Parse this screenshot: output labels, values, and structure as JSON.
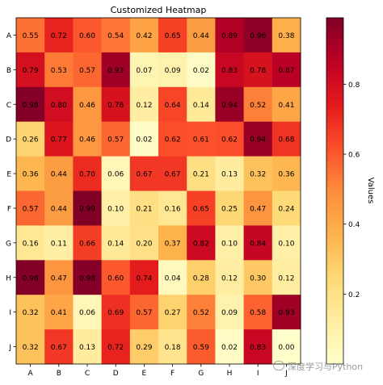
{
  "chart_data": {
    "type": "heatmap",
    "title": "Customized Heatmap",
    "xlabel": "",
    "ylabel": "",
    "x_categories": [
      "A",
      "B",
      "C",
      "D",
      "E",
      "F",
      "G",
      "H",
      "I",
      "J"
    ],
    "y_categories": [
      "A",
      "B",
      "C",
      "D",
      "E",
      "F",
      "G",
      "H",
      "I",
      "J"
    ],
    "values": [
      [
        0.55,
        0.72,
        0.6,
        0.54,
        0.42,
        0.65,
        0.44,
        0.89,
        0.96,
        0.38
      ],
      [
        0.79,
        0.53,
        0.57,
        0.93,
        0.07,
        0.09,
        0.02,
        0.83,
        0.78,
        0.87
      ],
      [
        0.98,
        0.8,
        0.46,
        0.78,
        0.12,
        0.64,
        0.14,
        0.94,
        0.52,
        0.41
      ],
      [
        0.26,
        0.77,
        0.46,
        0.57,
        0.02,
        0.62,
        0.61,
        0.62,
        0.94,
        0.68
      ],
      [
        0.36,
        0.44,
        0.7,
        0.06,
        0.67,
        0.67,
        0.21,
        0.13,
        0.32,
        0.36
      ],
      [
        0.57,
        0.44,
        0.99,
        0.1,
        0.21,
        0.16,
        0.65,
        0.25,
        0.47,
        0.24
      ],
      [
        0.16,
        0.11,
        0.66,
        0.14,
        0.2,
        0.37,
        0.82,
        0.1,
        0.84,
        0.1
      ],
      [
        0.98,
        0.47,
        0.98,
        0.6,
        0.74,
        0.04,
        0.28,
        0.12,
        0.3,
        0.12
      ],
      [
        0.32,
        0.41,
        0.06,
        0.69,
        0.57,
        0.27,
        0.52,
        0.09,
        0.58,
        0.93
      ],
      [
        0.32,
        0.67,
        0.13,
        0.72,
        0.29,
        0.18,
        0.59,
        0.02,
        0.83,
        0.0
      ]
    ],
    "value_format": "0.00",
    "colormap": "YlOrRd",
    "colorbar": {
      "label": "Values",
      "range": [
        0.0,
        0.99
      ],
      "ticks": [
        0.2,
        0.4,
        0.6,
        0.8
      ],
      "tick_labels": [
        "0.2",
        "0.4",
        "0.6",
        "0.8"
      ]
    },
    "colors": {
      "low": "#ffffcc",
      "high": "#800026",
      "text": "#000000"
    },
    "grid": false
  },
  "watermark": {
    "text": "深度学习与Python",
    "icon": "wechat-icon"
  }
}
